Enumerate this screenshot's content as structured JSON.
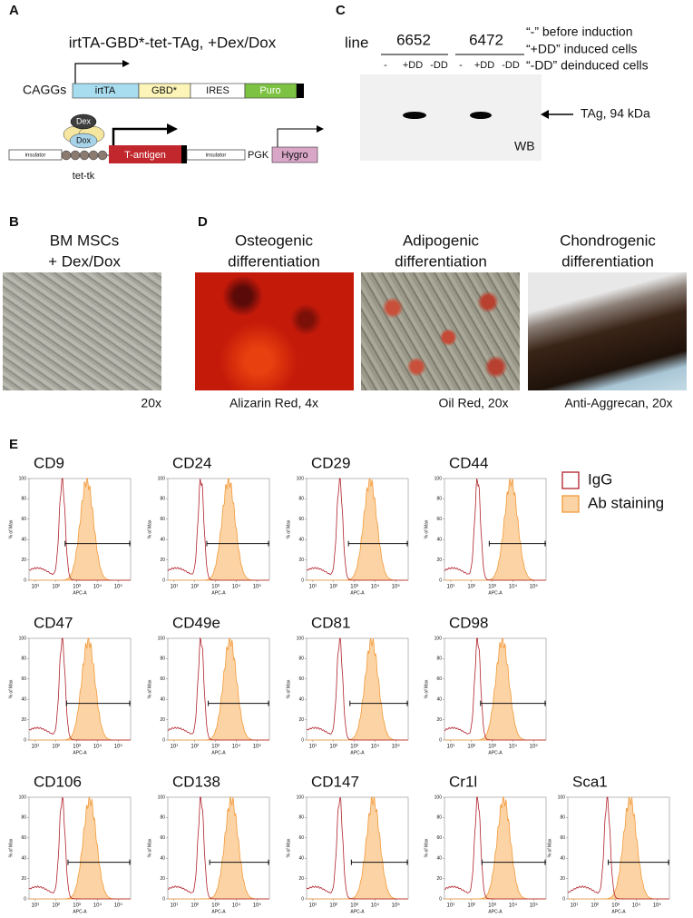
{
  "panel_a": {
    "label": "A",
    "title": "irtTA-GBD*-tet-TAg, +Dex/Dox",
    "construct_1": {
      "promoter": "CAGGs",
      "segments": [
        "irtTA",
        "GBD*",
        "IRES",
        "Puro"
      ]
    },
    "construct_2": {
      "ligands": [
        "Dex",
        "Dox"
      ],
      "insulator_left": "insulator",
      "operator": "tet-tk",
      "gene": "T-antigen",
      "insulator_right": "insulator",
      "promoter": "PGK",
      "selection": "Hygro"
    }
  },
  "panel_c": {
    "label": "C",
    "row_label": "line",
    "lines": [
      "6652",
      "6472"
    ],
    "lanes": [
      "-",
      "+DD",
      "-DD",
      "-",
      "+DD",
      "-DD"
    ],
    "legend": [
      "“-” before induction",
      "“+DD” induced cells",
      "“-DD” deinduced cells"
    ],
    "band_label": "TAg, 94 kDa",
    "method": "WB"
  },
  "panel_b": {
    "label": "B",
    "title": [
      "BM MSCs",
      "+ Dex/Dox"
    ],
    "magnification": "20x"
  },
  "panel_d": {
    "label": "D",
    "images": [
      {
        "title": [
          "Osteogenic",
          "differentiation"
        ],
        "caption": "Alizarin Red, 4x"
      },
      {
        "title": [
          "Adipogenic",
          "differentiation"
        ],
        "caption": "Oil Red, 20x"
      },
      {
        "title": [
          "Chondrogenic",
          "differentiation"
        ],
        "caption": "Anti-Aggrecan, 20x"
      }
    ]
  },
  "panel_e": {
    "label": "E",
    "legend": [
      "IgG",
      "Ab staining"
    ],
    "y_label": "% of Max",
    "x_label": "APC-A",
    "ylim": [
      0,
      100
    ],
    "yticks": [
      0,
      20,
      40,
      60,
      80,
      100
    ],
    "xlim": [
      0.7,
      5.6
    ],
    "xticks": [
      {
        "value": 1,
        "label": "10¹"
      },
      {
        "value": 2,
        "label": "10²"
      },
      {
        "value": 3,
        "label": "10³"
      },
      {
        "value": 4,
        "label": "10⁴"
      },
      {
        "value": 5,
        "label": "10⁵"
      }
    ],
    "markers": [
      "CD9",
      "CD24",
      "CD29",
      "CD44",
      "CD47",
      "CD49e",
      "CD81",
      "CD98",
      "CD106",
      "CD138",
      "CD147",
      "Cr1l",
      "Sca1"
    ]
  }
}
